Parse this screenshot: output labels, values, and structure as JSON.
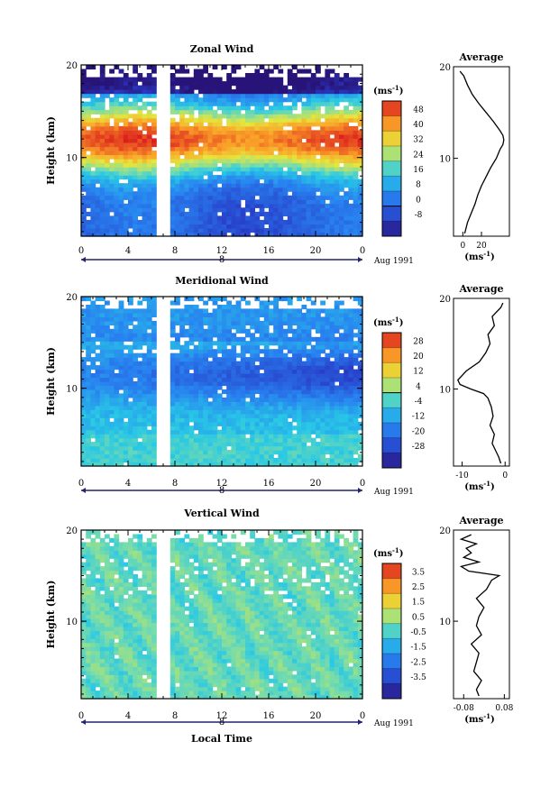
{
  "chart_data": [
    {
      "type": "heatmap",
      "title": "Zonal Wind",
      "ylabel": "Height (km)",
      "xticks": [
        "0",
        "4",
        "8",
        "12",
        "16",
        "20",
        "0"
      ],
      "xlim": [
        0,
        24
      ],
      "yticks": [
        "10",
        "20"
      ],
      "ylim": [
        1.5,
        20
      ],
      "colorbar_unit": "(ms",
      "colorbar_unit_sup": "-1",
      "colorbar_ticks": [
        "48",
        "40",
        "32",
        "24",
        "16",
        "8",
        "0",
        "-8"
      ],
      "colorbar_range": [
        -12,
        52
      ],
      "day_label": "8",
      "date_label": "Aug 1991",
      "data_gap_hours": [
        6.5,
        7.3
      ],
      "average": {
        "title": "Average",
        "xticks": [
          "0",
          "20"
        ],
        "xlim": [
          -10,
          50
        ],
        "xlabel": "(ms",
        "xlabel_sup": "-1",
        "heights_km": [
          1.8,
          3,
          4,
          5,
          6,
          7,
          8,
          9,
          10,
          11,
          11.5,
          12,
          12.5,
          13,
          14,
          15,
          16,
          17,
          18,
          19,
          19.5
        ],
        "values": [
          2,
          5,
          9,
          13,
          16,
          20,
          25,
          30,
          36,
          40,
          43,
          44,
          43,
          40,
          33,
          25,
          17,
          10,
          5,
          1,
          -3
        ]
      }
    },
    {
      "type": "heatmap",
      "title": "Meridional Wind",
      "ylabel": "Height (km)",
      "xticks": [
        "0",
        "4",
        "8",
        "12",
        "16",
        "20",
        "0"
      ],
      "xlim": [
        0,
        24
      ],
      "yticks": [
        "10",
        "20"
      ],
      "ylim": [
        1.5,
        20
      ],
      "colorbar_unit": "(ms",
      "colorbar_unit_sup": "-1",
      "colorbar_ticks": [
        "28",
        "20",
        "12",
        "4",
        "-4",
        "-12",
        "-20",
        "-28"
      ],
      "colorbar_range": [
        -32,
        32
      ],
      "day_label": "8",
      "date_label": "Aug 1991",
      "data_gap_hours": [
        6.5,
        7.3
      ],
      "average": {
        "title": "Average",
        "xticks": [
          "-10",
          "0"
        ],
        "xlim": [
          -12,
          1
        ],
        "xlabel": "(ms",
        "xlabel_sup": "-1",
        "heights_km": [
          1.8,
          2.5,
          3,
          4,
          5,
          6,
          7,
          8,
          9,
          9.5,
          10,
          10.5,
          11,
          12,
          13,
          14,
          15,
          16,
          17,
          18,
          19,
          19.5
        ],
        "values": [
          -1,
          -1.5,
          -2,
          -3,
          -2.5,
          -3.5,
          -2.8,
          -3.2,
          -4,
          -5,
          -8,
          -10.5,
          -11,
          -9,
          -6,
          -4.5,
          -3.5,
          -4,
          -2.5,
          -3,
          -1,
          -0.5
        ]
      }
    },
    {
      "type": "heatmap",
      "title": "Vertical Wind",
      "ylabel": "Height (km)",
      "xlabel": "Local Time",
      "xticks": [
        "0",
        "4",
        "8",
        "12",
        "16",
        "20",
        "0"
      ],
      "xlim": [
        0,
        24
      ],
      "yticks": [
        "10",
        "20"
      ],
      "ylim": [
        1.5,
        20
      ],
      "colorbar_unit": "(ms",
      "colorbar_unit_sup": "-1",
      "colorbar_ticks": [
        "3.5",
        "2.5",
        "1.5",
        "0.5",
        "-0.5",
        "-1.5",
        "-2.5",
        "-3.5"
      ],
      "colorbar_range": [
        -4,
        4
      ],
      "day_label": "8",
      "date_label": "Aug 1991",
      "data_gap_hours": [
        6.5,
        7.3
      ],
      "average": {
        "title": "Average",
        "xticks": [
          "-0.08",
          "0.08"
        ],
        "xlim": [
          -0.12,
          0.1
        ],
        "xlabel": "(ms",
        "xlabel_sup": "-1",
        "heights_km": [
          1.8,
          2.5,
          3.5,
          4.5,
          5.5,
          6.5,
          7.5,
          8.5,
          9.5,
          10.5,
          11.5,
          12.5,
          13.5,
          14.5,
          15,
          15.5,
          16,
          16.5,
          17,
          17.5,
          18,
          18.5,
          19,
          19.5
        ],
        "values": [
          -0.02,
          -0.03,
          -0.01,
          -0.04,
          -0.03,
          -0.02,
          -0.05,
          -0.01,
          -0.03,
          -0.02,
          0.0,
          -0.03,
          0.01,
          0.03,
          0.06,
          -0.06,
          -0.09,
          -0.02,
          -0.08,
          -0.05,
          -0.07,
          -0.03,
          -0.09,
          -0.05
        ]
      }
    }
  ]
}
